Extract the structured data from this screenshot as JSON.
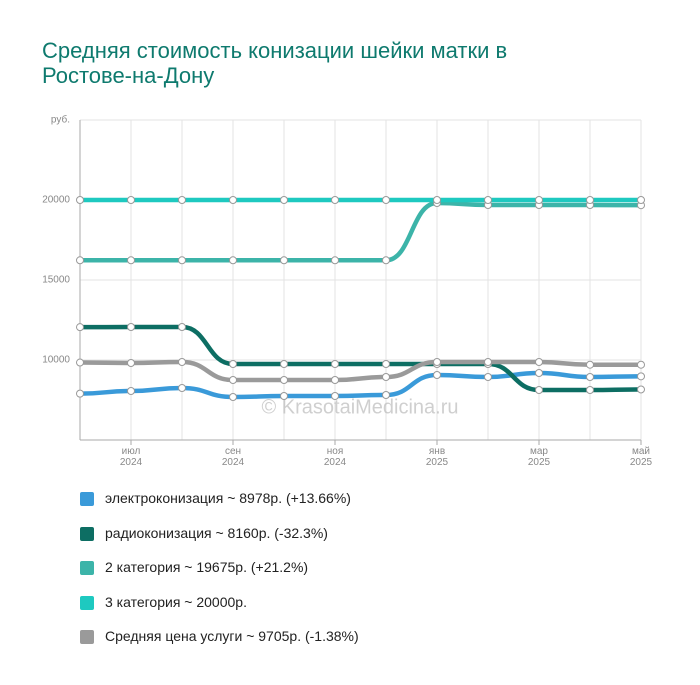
{
  "chart_data": {
    "type": "line",
    "title": "Средняя стоимость конизации шейки матки в Ростове-на-Дону",
    "y_unit": "руб.",
    "watermark": "© KrasotaiMedicina.ru",
    "categories": [
      null,
      "июл 2024",
      null,
      "сен 2024",
      null,
      "ноя 2024",
      null,
      "янв 2025",
      null,
      "мар 2025",
      null,
      "май 2025"
    ],
    "ylim": [
      5000,
      25000
    ],
    "yticks": [
      10000,
      15000,
      20000
    ],
    "grid": true,
    "series": [
      {
        "name": "электроконизация ~ 8978р. (+13.66%)",
        "color": "#3a9ad9",
        "values": [
          7899,
          8063,
          8250,
          7688,
          7750,
          7750,
          7813,
          9063,
          8938,
          9188,
          8938,
          8978
        ]
      },
      {
        "name": "радиоконизация ~ 8160р. (-32.3%)",
        "color": "#0d6e63",
        "values": [
          12053,
          12063,
          12063,
          9750,
          9750,
          9750,
          9750,
          9750,
          9750,
          8125,
          8125,
          8160
        ]
      },
      {
        "name": "2 категория ~ 19675р. (+21.2%)",
        "color": "#3cb4a9",
        "values": [
          16233,
          16233,
          16233,
          16233,
          16233,
          16233,
          16233,
          19813,
          19688,
          19688,
          19688,
          19675
        ]
      },
      {
        "name": "3 категория ~ 20000р.",
        "color": "#1ec9c0",
        "values": [
          20000,
          20000,
          20000,
          20000,
          20000,
          20000,
          20000,
          20000,
          20000,
          20000,
          20000,
          20000
        ]
      },
      {
        "name": "Средняя цена услуги ~ 9705р. (-1.38%)",
        "color": "#9a9a9a",
        "values": [
          9841,
          9813,
          9875,
          8750,
          8750,
          8750,
          8938,
          9875,
          9875,
          9875,
          9705,
          9705
        ]
      }
    ]
  }
}
